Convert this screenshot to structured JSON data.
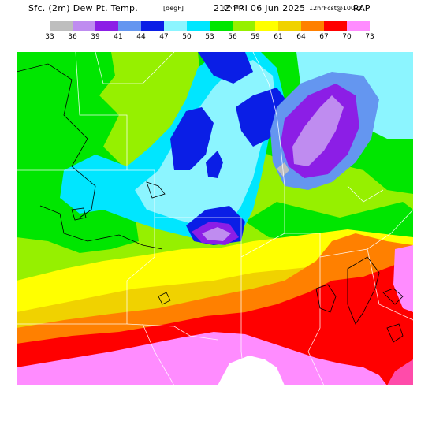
{
  "header": {
    "main": "Sfc. (2m) Dew Pt. Temp.",
    "units": "[degF]",
    "run": "21Z",
    "run_local": "(15cdt)",
    "date": "FRI 06 Jun 2025",
    "model_info": "12hrFcst@1002z",
    "model": "RAP"
  },
  "legend": {
    "labels": [
      "33",
      "36",
      "39",
      "41",
      "44",
      "47",
      "50",
      "53",
      "56",
      "59",
      "61",
      "64",
      "67",
      "70",
      "73"
    ],
    "colors": [
      "#bebebe",
      "#bf8cf0",
      "#8c1ee6",
      "#6496f0",
      "#0a1ee6",
      "#8cf5ff",
      "#00e6ff",
      "#00e600",
      "#96f000",
      "#ffff00",
      "#f0d200",
      "#ff8000",
      "#ff0000",
      "#ff8cff",
      "#ff4baa"
    ]
  },
  "map": {
    "fill_colors": {
      "c36": "#bf8cf0",
      "c39": "#8c1ee6",
      "c41": "#6496f0",
      "c44": "#0a1ee6",
      "c47": "#8cf5ff",
      "c50": "#00e6ff",
      "c53": "#00e600",
      "c56": "#96f000",
      "c59": "#ffff00",
      "c61": "#f0d200",
      "c64": "#ff8000",
      "c67": "#ff0000",
      "c70": "#ff8cff",
      "c73": "#ff4baa",
      "c33": "#bebebe"
    }
  }
}
